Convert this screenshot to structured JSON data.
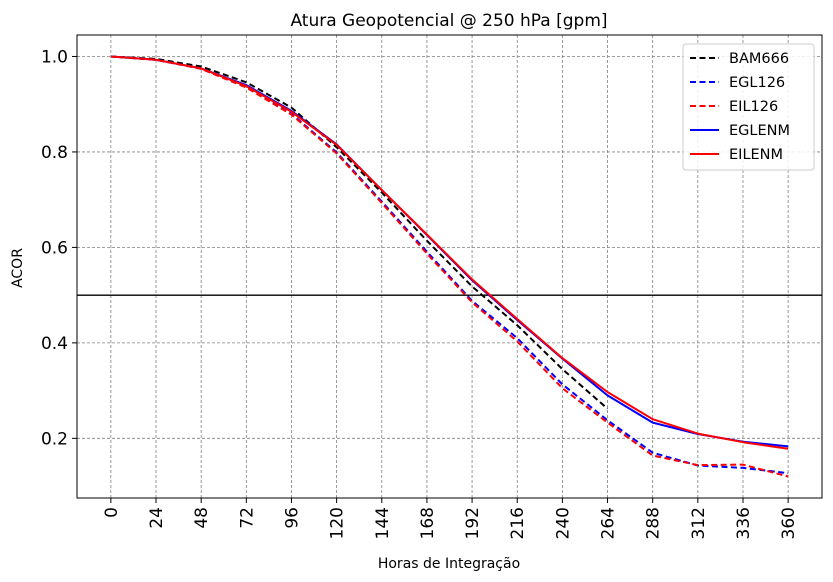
{
  "chart_data": {
    "type": "line",
    "title": "Atura Geopotencial @ 250 hPa [gpm]",
    "xlabel": "Horas de Integração",
    "ylabel": "ACOR",
    "x": [
      0,
      24,
      48,
      72,
      96,
      120,
      144,
      168,
      192,
      216,
      240,
      264,
      288,
      312,
      336,
      360
    ],
    "x_tick_labels": [
      "0",
      "24",
      "48",
      "72",
      "96",
      "120",
      "144",
      "168",
      "192",
      "216",
      "240",
      "264",
      "288",
      "312",
      "336",
      "360"
    ],
    "y_ticks": [
      0.2,
      0.4,
      0.6,
      0.8,
      1.0
    ],
    "y_tick_labels": [
      "0.2",
      "0.4",
      "0.6",
      "0.8",
      "1.0"
    ],
    "xlim": [
      -18,
      378
    ],
    "ylim": [
      0.075,
      1.045
    ],
    "reference_line": 0.5,
    "grid": true,
    "legend_position": "top-right",
    "series": [
      {
        "name": "BAM666",
        "color": "#000000",
        "style": "dashed",
        "x": [
          0,
          24,
          48,
          72,
          96,
          120,
          144,
          168,
          192,
          216,
          240,
          264
        ],
        "values": [
          1.0,
          0.995,
          0.979,
          0.946,
          0.893,
          0.81,
          0.715,
          0.614,
          0.518,
          0.437,
          0.345,
          0.262
        ]
      },
      {
        "name": "EGL126",
        "color": "#0000ff",
        "style": "dashed",
        "x": [
          0,
          24,
          48,
          72,
          96,
          120,
          144,
          168,
          192,
          216,
          240,
          264,
          288,
          312,
          336,
          360
        ],
        "values": [
          1.0,
          0.993,
          0.975,
          0.937,
          0.88,
          0.799,
          0.696,
          0.591,
          0.488,
          0.41,
          0.313,
          0.238,
          0.17,
          0.143,
          0.138,
          0.127
        ]
      },
      {
        "name": "EIL126",
        "color": "#ff0000",
        "style": "dashed",
        "x": [
          0,
          24,
          48,
          72,
          96,
          120,
          144,
          168,
          192,
          216,
          240,
          264,
          288,
          312,
          336,
          360
        ],
        "values": [
          1.0,
          0.993,
          0.974,
          0.935,
          0.878,
          0.797,
          0.693,
          0.587,
          0.485,
          0.403,
          0.305,
          0.233,
          0.164,
          0.144,
          0.145,
          0.12
        ]
      },
      {
        "name": "EGLENM",
        "color": "#0000ff",
        "style": "solid",
        "x": [
          0,
          24,
          48,
          72,
          96,
          120,
          144,
          168,
          192,
          216,
          240,
          264,
          288,
          312,
          336,
          360
        ],
        "values": [
          1.0,
          0.993,
          0.975,
          0.94,
          0.886,
          0.816,
          0.72,
          0.626,
          0.531,
          0.448,
          0.367,
          0.29,
          0.233,
          0.209,
          0.193,
          0.183
        ]
      },
      {
        "name": "EILENM",
        "color": "#ff0000",
        "style": "solid",
        "x": [
          0,
          24,
          48,
          72,
          96,
          120,
          144,
          168,
          192,
          216,
          240,
          264,
          288,
          312,
          336,
          360
        ],
        "values": [
          1.0,
          0.993,
          0.975,
          0.938,
          0.884,
          0.815,
          0.72,
          0.627,
          0.533,
          0.45,
          0.368,
          0.297,
          0.24,
          0.21,
          0.192,
          0.178
        ]
      }
    ]
  }
}
